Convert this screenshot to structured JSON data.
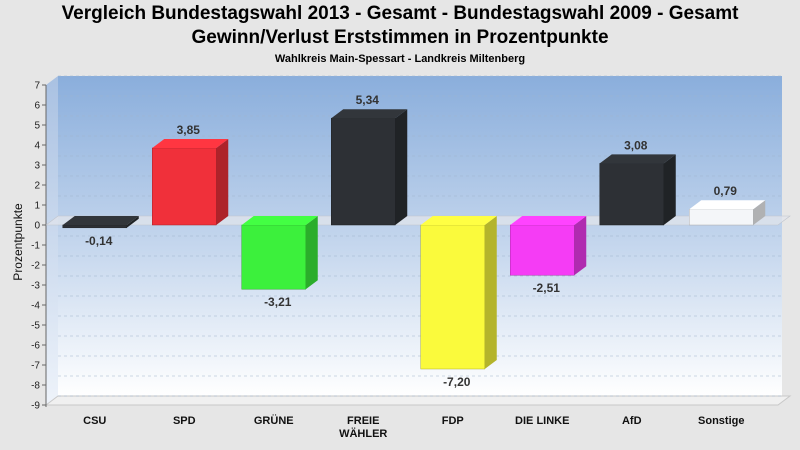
{
  "chart_data": {
    "type": "bar",
    "title": "Vergleich Bundestagswahl 2013 - Gesamt - Bundestagswahl 2009 - Gesamt",
    "title_line2": "Gewinn/Verlust Erststimmen in Prozentpunkte",
    "subtitle": "Wahlkreis Main-Spessart - Landkreis Miltenberg",
    "ylabel": "Prozentpunkte",
    "ylim": [
      -9,
      7
    ],
    "yticks": [
      "7",
      "6",
      "5",
      "4",
      "3",
      "2",
      "1",
      "0",
      "-1",
      "-2",
      "-3",
      "-4",
      "-5",
      "-6",
      "-7",
      "-8",
      "-9"
    ],
    "grid": true,
    "categories": [
      [
        "CSU"
      ],
      [
        "SPD"
      ],
      [
        "GRÜNE"
      ],
      [
        "FREIE",
        "WÄHLER"
      ],
      [
        "FDP"
      ],
      [
        "DIE LINKE"
      ],
      [
        "AfD"
      ],
      [
        "Sonstige"
      ]
    ],
    "values": [
      -0.14,
      3.85,
      -3.21,
      5.34,
      -7.2,
      -2.51,
      3.08,
      0.79
    ],
    "value_labels": [
      "-0,14",
      "3,85",
      "-3,21",
      "5,34",
      "-7,20",
      "-2,51",
      "3,08",
      "0,79"
    ],
    "colors": [
      "#2d3035",
      "#f0303a",
      "#3cf03c",
      "#2d3035",
      "#fafa3c",
      "#f53cf5",
      "#2d3035",
      "#f4f6f9"
    ]
  }
}
